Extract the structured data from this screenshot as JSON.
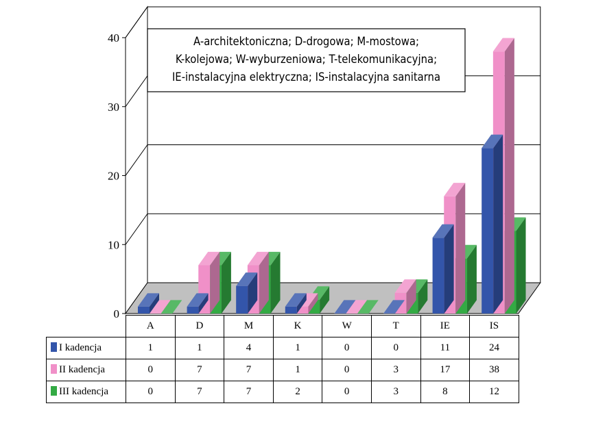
{
  "chart_data": {
    "type": "bar",
    "categories": [
      "A",
      "D",
      "M",
      "K",
      "W",
      "T",
      "IE",
      "IS"
    ],
    "series": [
      {
        "name": "I kadencja",
        "values": [
          1,
          1,
          4,
          1,
          0,
          0,
          11,
          24
        ],
        "color": "#3355aa"
      },
      {
        "name": "II kadencja",
        "values": [
          0,
          7,
          7,
          1,
          0,
          3,
          17,
          38
        ],
        "color": "#f090c8"
      },
      {
        "name": "III kadencja",
        "values": [
          0,
          7,
          7,
          2,
          0,
          3,
          8,
          12
        ],
        "color": "#33aa44"
      }
    ],
    "ylim": [
      0,
      40
    ],
    "yticks": [
      0,
      10,
      20,
      30,
      40
    ],
    "grid": true,
    "legend_box_lines": [
      "A-architektoniczna; D-drogowa; M-mostowa;",
      "K-kolejowa; W-wyburzeniowa; T-telekomunikacyjna;",
      "IE-instalacyjna elektryczna; IS-instalacyjna sanitarna"
    ],
    "legend": "data-table-below"
  }
}
